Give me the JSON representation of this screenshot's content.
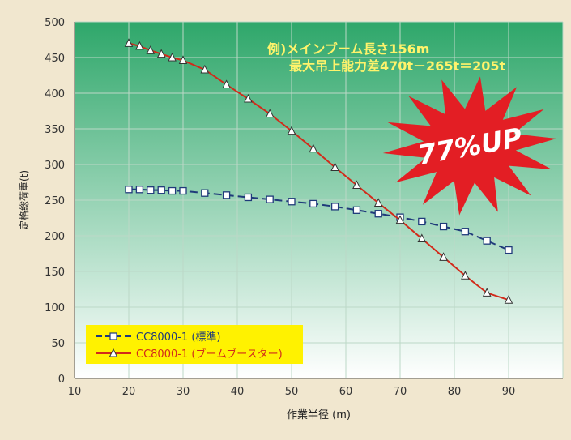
{
  "chart_data": {
    "type": "line",
    "title": "",
    "xlabel": "作業半径 (m)",
    "ylabel": "定格総荷重(t)",
    "xlim": [
      10,
      100
    ],
    "ylim": [
      0,
      500
    ],
    "x_ticks": [
      10,
      20,
      30,
      40,
      50,
      60,
      70,
      80,
      90
    ],
    "y_ticks": [
      0,
      50,
      100,
      150,
      200,
      250,
      300,
      350,
      400,
      450,
      500
    ],
    "grid": true,
    "legend_position": "bottom-left",
    "series": [
      {
        "name": "CC8000-1 (標準)",
        "color": "#1f3a7a",
        "marker": "square",
        "line_style": "dashed",
        "x": [
          20,
          22,
          24,
          26,
          28,
          30,
          34,
          38,
          42,
          46,
          50,
          54,
          58,
          62,
          66,
          70,
          74,
          78,
          82,
          86,
          90
        ],
        "y": [
          265,
          265,
          264,
          264,
          263,
          263,
          260,
          257,
          254,
          251,
          248,
          245,
          241,
          236,
          231,
          226,
          220,
          213,
          206,
          193,
          180
        ]
      },
      {
        "name": "CC8000-1 (ブームブースター)",
        "color": "#d22a1a",
        "marker": "triangle",
        "line_style": "solid",
        "x": [
          20,
          22,
          24,
          26,
          28,
          30,
          34,
          38,
          42,
          46,
          50,
          54,
          58,
          62,
          66,
          70,
          74,
          78,
          82,
          86,
          90
        ],
        "y": [
          470,
          466,
          460,
          455,
          450,
          446,
          433,
          412,
          392,
          371,
          347,
          322,
          296,
          271,
          246,
          222,
          196,
          170,
          144,
          120,
          110
        ]
      }
    ],
    "annotations": {
      "example_line1": "例)メインブーム長さ156m",
      "example_line2": "最大吊上能力差470t－265t＝205t",
      "burst_label": "77%UP"
    },
    "colors": {
      "gradient_top": "#2ea76a",
      "gradient_bottom": "#ffffff",
      "burst": "#e31e24",
      "annotation_text": "#fff36b",
      "legend_bg": "#fff200"
    }
  }
}
